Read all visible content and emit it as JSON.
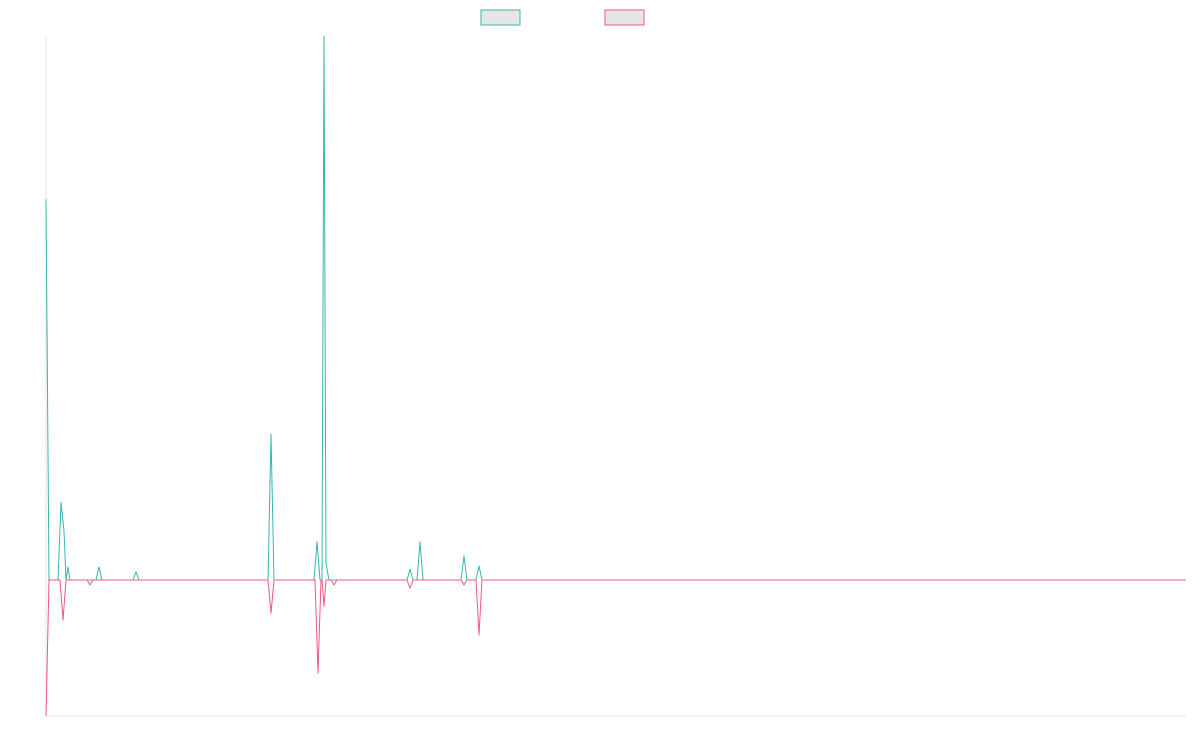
{
  "chart_data": {
    "type": "line",
    "xlim": [
      0,
      1140
    ],
    "ylim": [
      -25,
      100
    ],
    "series": [
      {
        "color": "#36b5b0",
        "x": [
          0,
          3,
          12,
          15,
          18,
          20,
          22,
          24,
          50,
          53,
          56,
          87,
          90,
          93,
          222,
          225,
          228,
          268,
          271,
          274,
          276,
          278,
          280,
          283,
          361,
          364,
          367,
          371,
          374,
          377,
          415,
          418,
          421,
          430,
          433,
          436,
          1140
        ],
        "values": [
          70,
          0,
          0,
          14.3,
          9,
          0,
          2.4,
          0,
          0,
          2.4,
          0,
          0,
          1.5,
          0,
          0,
          26.8,
          0,
          0,
          7,
          0,
          0,
          100,
          3,
          0,
          0,
          2,
          0,
          0,
          7,
          0,
          0,
          4.4,
          0,
          0,
          2.6,
          0,
          0
        ]
      },
      {
        "color": "#f0587c",
        "x": [
          0,
          3,
          14,
          17,
          20,
          41,
          44,
          47,
          222,
          225,
          228,
          269,
          272,
          275,
          276,
          278,
          280,
          285,
          288,
          291,
          361,
          364,
          367,
          415,
          418,
          421,
          430,
          433,
          436,
          1140
        ],
        "values": [
          -25,
          0,
          0,
          -7.4,
          0,
          0,
          -0.9,
          0,
          0,
          -6.1,
          0,
          0,
          -17.1,
          0,
          0,
          -4.8,
          0,
          0,
          -0.9,
          0,
          0,
          -1.5,
          0,
          0,
          -0.9,
          0,
          0,
          -10.1,
          0,
          0
        ]
      }
    ]
  }
}
